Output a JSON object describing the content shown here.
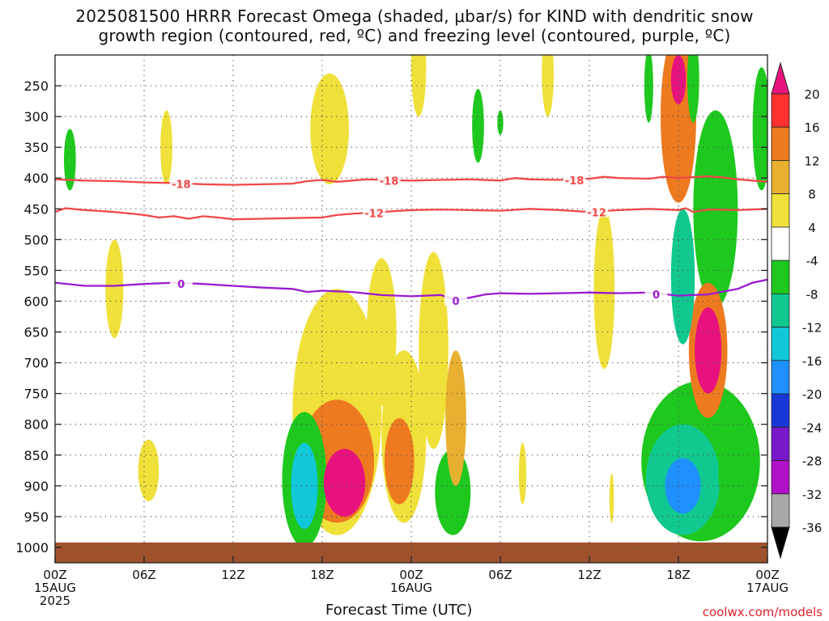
{
  "title_line1": "2025081500 HRRR Forecast Omega (shaded, μbar/s) for KIND with dendritic snow",
  "title_line2": "growth region (contoured, red, ºC) and freezing level (contoured, purple, ºC)",
  "credit": "coolwx.com/models",
  "colors": {
    "temp_contour": "#f04848",
    "freezing_contour": "#9a1ad0",
    "ground": "#a0522d",
    "grid": "#555555"
  },
  "chart_data": {
    "type": "heatmap",
    "title": "2025081500 HRRR Forecast Omega (shaded, μbar/s) for KIND with dendritic snow growth region (contoured, red, ºC) and freezing level (contoured, purple, ºC)",
    "xlabel": "Forecast Time (UTC)",
    "ylabel": "",
    "x_range_hours": [
      0,
      48
    ],
    "y_range_hPa": [
      200,
      1025
    ],
    "x_ticks": [
      {
        "h": 0,
        "label": "00Z",
        "sub1": "15AUG",
        "sub2": "2025"
      },
      {
        "h": 6,
        "label": "06Z"
      },
      {
        "h": 12,
        "label": "12Z"
      },
      {
        "h": 18,
        "label": "18Z"
      },
      {
        "h": 24,
        "label": "00Z",
        "sub1": "16AUG"
      },
      {
        "h": 30,
        "label": "06Z"
      },
      {
        "h": 36,
        "label": "12Z"
      },
      {
        "h": 42,
        "label": "18Z"
      },
      {
        "h": 48,
        "label": "00Z",
        "sub1": "17AUG"
      }
    ],
    "y_ticks": [
      250,
      300,
      350,
      400,
      450,
      500,
      550,
      600,
      650,
      700,
      750,
      800,
      850,
      900,
      950,
      1000
    ],
    "grid": true,
    "colorbar": {
      "levels": [
        20,
        16,
        12,
        8,
        4,
        -4,
        -8,
        -12,
        -16,
        -20,
        -24,
        -28,
        -32,
        -36
      ],
      "colors": [
        "#e8127e",
        "#ff3030",
        "#ee7a20",
        "#e8b030",
        "#f0e03a",
        "#ffffff",
        "#1ec81e",
        "#10c890",
        "#10c8d8",
        "#1e90ff",
        "#1838d8",
        "#7818c8",
        "#b010c8",
        "#a8a8a8",
        "#000000"
      ]
    },
    "contours": [
      {
        "label": "-18",
        "color": "#f04848",
        "label_at_hours": [
          8.5,
          22.5,
          35
        ],
        "points": [
          [
            0,
            402
          ],
          [
            2,
            404
          ],
          [
            4,
            405
          ],
          [
            6,
            407
          ],
          [
            8,
            408
          ],
          [
            10,
            410
          ],
          [
            12,
            411
          ],
          [
            14,
            410
          ],
          [
            16,
            409
          ],
          [
            17,
            405
          ],
          [
            18,
            403
          ],
          [
            19,
            406
          ],
          [
            20,
            404
          ],
          [
            21,
            402
          ],
          [
            22,
            403
          ],
          [
            24,
            404
          ],
          [
            26,
            403
          ],
          [
            28,
            402
          ],
          [
            30,
            404
          ],
          [
            31,
            400
          ],
          [
            32,
            402
          ],
          [
            34,
            403
          ],
          [
            36,
            401
          ],
          [
            37,
            398
          ],
          [
            38,
            400
          ],
          [
            40,
            401
          ],
          [
            41,
            398
          ],
          [
            42,
            400
          ],
          [
            44,
            397
          ],
          [
            45,
            399
          ],
          [
            46,
            402
          ],
          [
            47,
            404
          ],
          [
            48,
            406
          ]
        ]
      },
      {
        "label": "-12",
        "color": "#f04848",
        "label_at_hours": [
          21.5,
          36.5
        ],
        "points": [
          [
            0,
            455
          ],
          [
            0.7,
            449
          ],
          [
            2,
            452
          ],
          [
            4,
            455
          ],
          [
            6,
            460
          ],
          [
            7,
            464
          ],
          [
            8,
            462
          ],
          [
            9,
            466
          ],
          [
            10,
            462
          ],
          [
            11,
            464
          ],
          [
            12,
            467
          ],
          [
            14,
            466
          ],
          [
            16,
            465
          ],
          [
            18,
            464
          ],
          [
            19,
            460
          ],
          [
            20,
            458
          ],
          [
            22,
            455
          ],
          [
            24,
            452
          ],
          [
            26,
            451
          ],
          [
            28,
            452
          ],
          [
            30,
            453
          ],
          [
            32,
            450
          ],
          [
            34,
            452
          ],
          [
            36,
            455
          ],
          [
            38,
            452
          ],
          [
            40,
            450
          ],
          [
            42,
            452
          ],
          [
            42.5,
            449
          ],
          [
            43,
            455
          ],
          [
            44,
            451
          ],
          [
            46,
            452
          ],
          [
            48,
            450
          ]
        ]
      },
      {
        "label": "0",
        "color": "#9a1ad0",
        "label_at_hours": [
          8.5,
          27,
          40.5
        ],
        "points": [
          [
            0,
            570
          ],
          [
            2,
            575
          ],
          [
            4,
            575
          ],
          [
            6,
            572
          ],
          [
            8,
            570
          ],
          [
            10,
            572
          ],
          [
            12,
            575
          ],
          [
            14,
            578
          ],
          [
            16,
            580
          ],
          [
            17,
            585
          ],
          [
            18,
            583
          ],
          [
            20,
            585
          ],
          [
            22,
            590
          ],
          [
            24,
            592
          ],
          [
            26,
            590
          ],
          [
            27,
            598
          ],
          [
            28,
            594
          ],
          [
            29,
            589
          ],
          [
            30,
            587
          ],
          [
            32,
            588
          ],
          [
            34,
            587
          ],
          [
            36,
            586
          ],
          [
            38,
            587
          ],
          [
            40,
            586
          ],
          [
            42,
            591
          ],
          [
            44,
            589
          ],
          [
            46,
            580
          ],
          [
            47,
            570
          ],
          [
            48,
            565
          ]
        ]
      }
    ],
    "omega_features": [
      {
        "h": 19.5,
        "p": 895,
        "rh": 1.4,
        "rp": 55,
        "value": 24
      },
      {
        "h": 19.0,
        "p": 860,
        "rh": 2.5,
        "rp": 100,
        "value": 12
      },
      {
        "h": 19.0,
        "p": 780,
        "rh": 3.0,
        "rp": 200,
        "value": 4
      },
      {
        "h": 23.2,
        "p": 860,
        "rh": 1.0,
        "rp": 70,
        "value": 12
      },
      {
        "h": 23.5,
        "p": 820,
        "rh": 1.5,
        "rp": 140,
        "value": 4
      },
      {
        "h": 22.0,
        "p": 650,
        "rh": 1.0,
        "rp": 120,
        "value": 4
      },
      {
        "h": 25.5,
        "p": 680,
        "rh": 1.0,
        "rp": 160,
        "value": 4
      },
      {
        "h": 27.0,
        "p": 790,
        "rh": 0.7,
        "rp": 110,
        "value": 8
      },
      {
        "h": 16.8,
        "p": 900,
        "rh": 0.9,
        "rp": 70,
        "value": -16
      },
      {
        "h": 16.8,
        "p": 890,
        "rh": 1.5,
        "rp": 110,
        "value": -8
      },
      {
        "h": 26.8,
        "p": 910,
        "rh": 1.2,
        "rp": 70,
        "value": -8
      },
      {
        "h": 42.3,
        "p": 900,
        "rh": 1.2,
        "rp": 45,
        "value": -20
      },
      {
        "h": 42.3,
        "p": 890,
        "rh": 2.5,
        "rp": 90,
        "value": -12
      },
      {
        "h": 43.5,
        "p": 860,
        "rh": 4.0,
        "rp": 130,
        "value": -8
      },
      {
        "h": 42.3,
        "p": 560,
        "rh": 0.8,
        "rp": 110,
        "value": -12
      },
      {
        "h": 42.0,
        "p": 300,
        "rh": 1.2,
        "rp": 140,
        "value": 12
      },
      {
        "h": 42.0,
        "p": 240,
        "rh": 0.5,
        "rp": 40,
        "value": 20
      },
      {
        "h": 44.0,
        "p": 680,
        "rh": 0.9,
        "rp": 70,
        "value": 20
      },
      {
        "h": 44.0,
        "p": 680,
        "rh": 1.3,
        "rp": 110,
        "value": 12
      },
      {
        "h": 44.5,
        "p": 450,
        "rh": 1.5,
        "rp": 160,
        "value": -8
      },
      {
        "h": 40.0,
        "p": 250,
        "rh": 0.3,
        "rp": 60,
        "value": -8
      },
      {
        "h": 43.0,
        "p": 240,
        "rh": 0.4,
        "rp": 70,
        "value": -8
      },
      {
        "h": 18.5,
        "p": 320,
        "rh": 1.3,
        "rp": 90,
        "value": 4
      },
      {
        "h": 4.0,
        "p": 580,
        "rh": 0.6,
        "rp": 80,
        "value": 4
      },
      {
        "h": 1.0,
        "p": 370,
        "rh": 0.4,
        "rp": 50,
        "value": -8
      },
      {
        "h": 7.5,
        "p": 350,
        "rh": 0.4,
        "rp": 60,
        "value": 4
      },
      {
        "h": 24.5,
        "p": 220,
        "rh": 0.5,
        "rp": 80,
        "value": 4
      },
      {
        "h": 33.2,
        "p": 230,
        "rh": 0.4,
        "rp": 70,
        "value": 4
      },
      {
        "h": 28.5,
        "p": 315,
        "rh": 0.4,
        "rp": 60,
        "value": -8
      },
      {
        "h": 30.0,
        "p": 310,
        "rh": 0.2,
        "rp": 20,
        "value": -8
      },
      {
        "h": 37.0,
        "p": 580,
        "rh": 0.7,
        "rp": 130,
        "value": 4
      },
      {
        "h": 6.3,
        "p": 875,
        "rh": 0.7,
        "rp": 50,
        "value": 4
      },
      {
        "h": 45.5,
        "p": 880,
        "rh": 0.8,
        "rp": 60,
        "value": -8
      },
      {
        "h": 47.6,
        "p": 320,
        "rh": 0.6,
        "rp": 100,
        "value": -8
      },
      {
        "h": 37.5,
        "p": 920,
        "rh": 0.15,
        "rp": 40,
        "value": 4
      },
      {
        "h": 31.5,
        "p": 880,
        "rh": 0.25,
        "rp": 50,
        "value": 4
      }
    ]
  }
}
